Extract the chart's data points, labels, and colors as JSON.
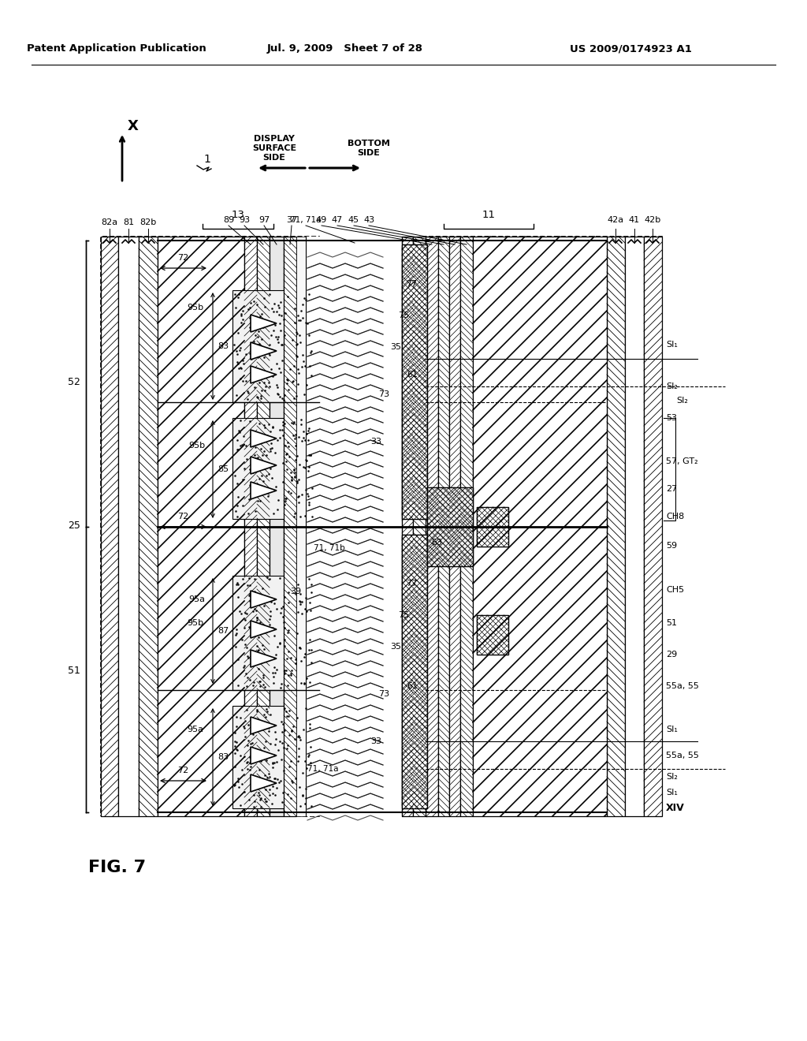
{
  "header_left": "Patent Application Publication",
  "header_mid": "Jul. 9, 2009   Sheet 7 of 28",
  "header_right": "US 2009/0174923 A1",
  "fig_label": "FIG. 7",
  "bg": "#ffffff"
}
